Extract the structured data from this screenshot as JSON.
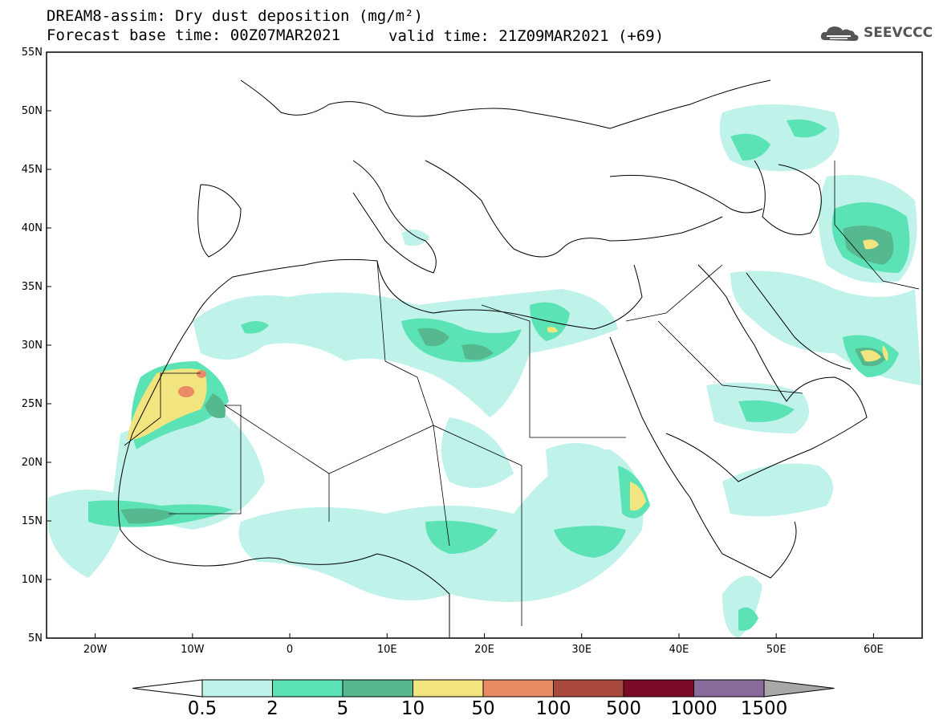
{
  "header": {
    "title": "DREAM8-assim: Dry dust deposition (mg/m²)",
    "base_time": "Forecast base time: 00Z07MAR2021",
    "valid_time": "valid time: 21Z09MAR2021 (+69)",
    "logo_text": "SEEVCCC"
  },
  "map": {
    "lon_range": [
      -25,
      65
    ],
    "lat_range": [
      5,
      55
    ],
    "lat_labels": [
      "55N",
      "50N",
      "45N",
      "40N",
      "35N",
      "30N",
      "25N",
      "20N",
      "15N",
      "10N",
      "5N"
    ],
    "lon_labels": [
      "20W",
      "10W",
      "0",
      "10E",
      "20E",
      "30E",
      "40E",
      "50E",
      "60E"
    ],
    "colors": {
      "land_line": "#000000",
      "background": "#ffffff"
    }
  },
  "colorbar": {
    "labels": [
      "0.5",
      "2",
      "5",
      "10",
      "50",
      "100",
      "500",
      "1000",
      "1500"
    ],
    "colors": [
      "#bff2e9",
      "#5be3b6",
      "#55b88e",
      "#f2e580",
      "#e98c66",
      "#aa4a3c",
      "#7a0a26",
      "#8a6a9a",
      "#a8a8a8"
    ]
  }
}
